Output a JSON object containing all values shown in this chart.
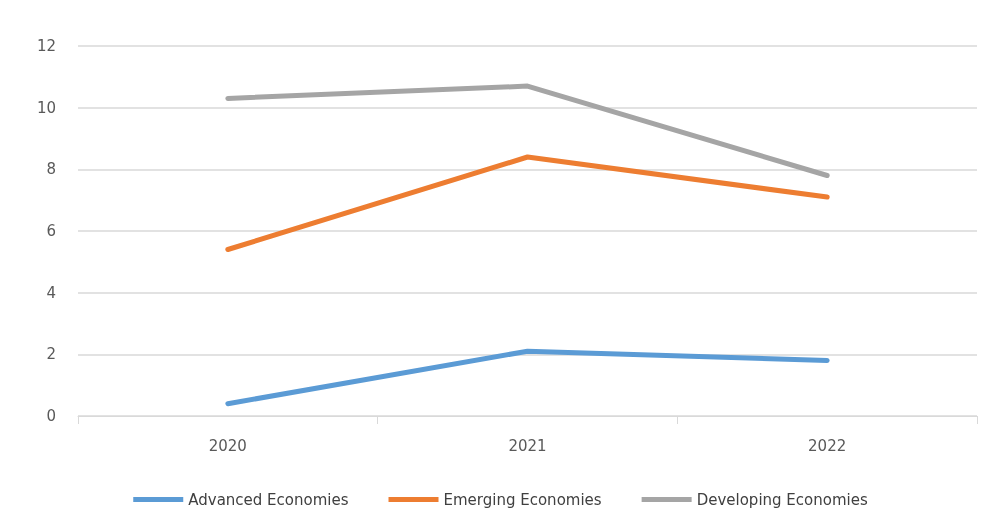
{
  "chart_data": {
    "type": "line",
    "categories": [
      "2020",
      "2021",
      "2022"
    ],
    "series": [
      {
        "name": "Advanced Economies",
        "color": "#5b9bd5",
        "values": [
          0.4,
          2.1,
          1.8
        ]
      },
      {
        "name": "Emerging Economies",
        "color": "#ed7d31",
        "values": [
          5.4,
          8.4,
          7.1
        ]
      },
      {
        "name": "Developing Economies",
        "color": "#a5a5a5",
        "values": [
          10.3,
          10.7,
          7.8
        ]
      }
    ],
    "ylim": [
      0,
      12
    ],
    "yticks": [
      0,
      2,
      4,
      6,
      8,
      10,
      12
    ],
    "grid": "y",
    "legend": "bottom",
    "marker": "none",
    "line_style": "solid"
  }
}
